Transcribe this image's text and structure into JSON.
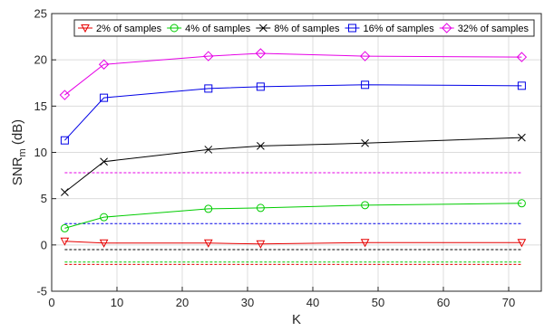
{
  "chart_data": {
    "type": "line",
    "xlabel": "K",
    "ylabel_main": "SNR",
    "ylabel_sub": "m",
    "ylabel_suffix": " (dB)",
    "xlim": [
      0,
      75
    ],
    "ylim": [
      -5,
      25
    ],
    "xticks": [
      0,
      10,
      20,
      30,
      40,
      50,
      60,
      70
    ],
    "yticks": [
      -5,
      0,
      5,
      10,
      15,
      20,
      25
    ],
    "grid": true,
    "legend_position": "top",
    "x": [
      2,
      8,
      24,
      32,
      48,
      72
    ],
    "series": [
      {
        "name": "2% of samples",
        "color": "#e60000",
        "marker": "triangle-down",
        "values": [
          0.4,
          0.2,
          0.2,
          0.1,
          0.25,
          0.25
        ],
        "baseline": -2.1
      },
      {
        "name": "4% of samples",
        "color": "#00cc00",
        "marker": "circle",
        "values": [
          1.8,
          3.0,
          3.9,
          4.0,
          4.3,
          4.5
        ],
        "baseline": -1.85
      },
      {
        "name": "8% of samples",
        "color": "#000000",
        "marker": "x",
        "values": [
          5.7,
          9.0,
          10.3,
          10.7,
          11.0,
          11.6
        ],
        "baseline": -0.5
      },
      {
        "name": "16% of samples",
        "color": "#0000e6",
        "marker": "square",
        "values": [
          11.3,
          15.9,
          16.9,
          17.1,
          17.3,
          17.2
        ],
        "baseline": 2.3
      },
      {
        "name": "32% of samples",
        "color": "#e600e6",
        "marker": "diamond",
        "values": [
          16.2,
          19.5,
          20.4,
          20.7,
          20.4,
          20.3
        ],
        "baseline": 7.8
      }
    ]
  }
}
